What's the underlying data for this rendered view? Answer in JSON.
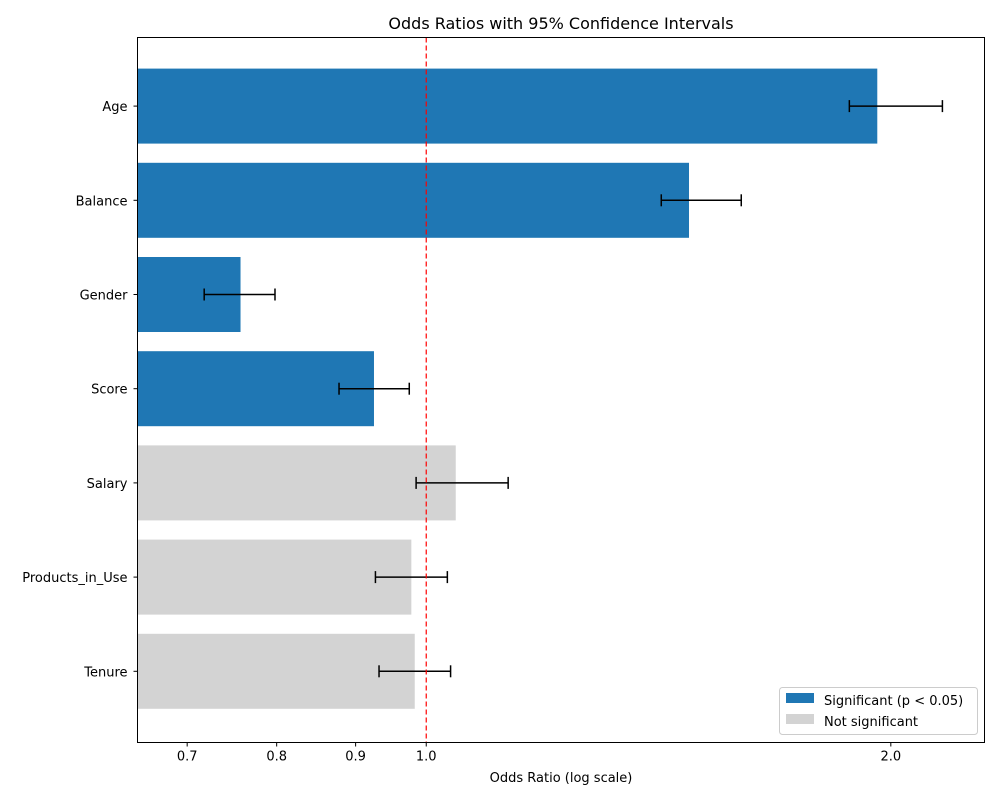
{
  "chart_data": {
    "type": "bar",
    "orientation": "horizontal",
    "title": "Odds Ratios with 95% Confidence Intervals",
    "xlabel": "Odds Ratio (log scale)",
    "ylabel": "",
    "x_scale": "log",
    "xlim": [
      0.65,
      2.3
    ],
    "x_ticks": [
      0.7,
      0.8,
      0.9,
      1.0,
      2.0
    ],
    "x_tick_labels": [
      "0.7",
      "0.8",
      "0.9",
      "1.0",
      "2.0"
    ],
    "reference_line": {
      "x": 1.0,
      "color": "#ff0000",
      "style": "dashed"
    },
    "categories": [
      "Age",
      "Balance",
      "Gender",
      "Score",
      "Salary",
      "Products_in_Use",
      "Tenure"
    ],
    "values": [
      1.96,
      1.48,
      0.758,
      0.925,
      1.045,
      0.978,
      0.983
    ],
    "ci_lower": [
      1.88,
      1.42,
      0.718,
      0.878,
      0.985,
      0.927,
      0.932
    ],
    "ci_upper": [
      2.16,
      1.6,
      0.798,
      0.975,
      1.13,
      1.032,
      1.037
    ],
    "significant": [
      true,
      true,
      true,
      true,
      false,
      false,
      false
    ],
    "colors": {
      "significant": "#1f77b4",
      "not_significant": "#d3d3d3",
      "errorbar": "#000000"
    },
    "legend": {
      "placement": "lower-right",
      "entries": [
        {
          "label": "Significant (p < 0.05)",
          "color": "#1f77b4"
        },
        {
          "label": "Not significant",
          "color": "#d3d3d3"
        }
      ]
    },
    "grid": false
  }
}
